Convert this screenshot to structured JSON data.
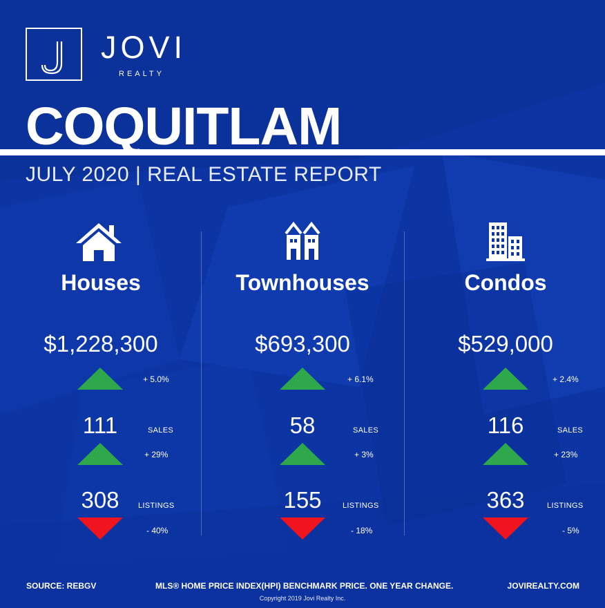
{
  "brand": {
    "name": "JOVI",
    "sub": "REALTY",
    "logo_icon": "jovi-j-monogram-icon"
  },
  "city": "COQUITLAM",
  "report_title": "JULY 2020 | REAL ESTATE REPORT",
  "colors": {
    "background": "#0c35a3",
    "up": "#2ea84a",
    "down": "#f0141e",
    "text": "#ffffff"
  },
  "columns": [
    {
      "label": "Houses",
      "icon": "house-icon",
      "price": "$1,228,300",
      "price_change": "+ 5.0%",
      "price_dir": "up",
      "sales": "111",
      "sales_label": "SALES",
      "sales_change": "+ 29%",
      "sales_dir": "up",
      "listings": "308",
      "listings_label": "LISTINGS",
      "listings_change": "- 40%",
      "listings_dir": "down"
    },
    {
      "label": "Townhouses",
      "icon": "townhouse-icon",
      "price": "$693,300",
      "price_change": "+ 6.1%",
      "price_dir": "up",
      "sales": "58",
      "sales_label": "SALES",
      "sales_change": "+ 3%",
      "sales_dir": "up",
      "listings": "155",
      "listings_label": "LISTINGS",
      "listings_change": "- 18%",
      "listings_dir": "down"
    },
    {
      "label": "Condos",
      "icon": "condo-building-icon",
      "price": "$529,000",
      "price_change": "+ 2.4%",
      "price_dir": "up",
      "sales": "116",
      "sales_label": "SALES",
      "sales_change": "+ 23%",
      "sales_dir": "up",
      "listings": "363",
      "listings_label": "LISTINGS",
      "listings_change": "- 5%",
      "listings_dir": "down"
    }
  ],
  "footer": {
    "source": "SOURCE:  REBGV",
    "note": "MLS® HOME PRICE INDEX(HPI) BENCHMARK PRICE. ONE YEAR CHANGE.",
    "website": "JOVIREALTY.COM",
    "copyright": "Copyright 2019 Jovi Realty Inc."
  }
}
